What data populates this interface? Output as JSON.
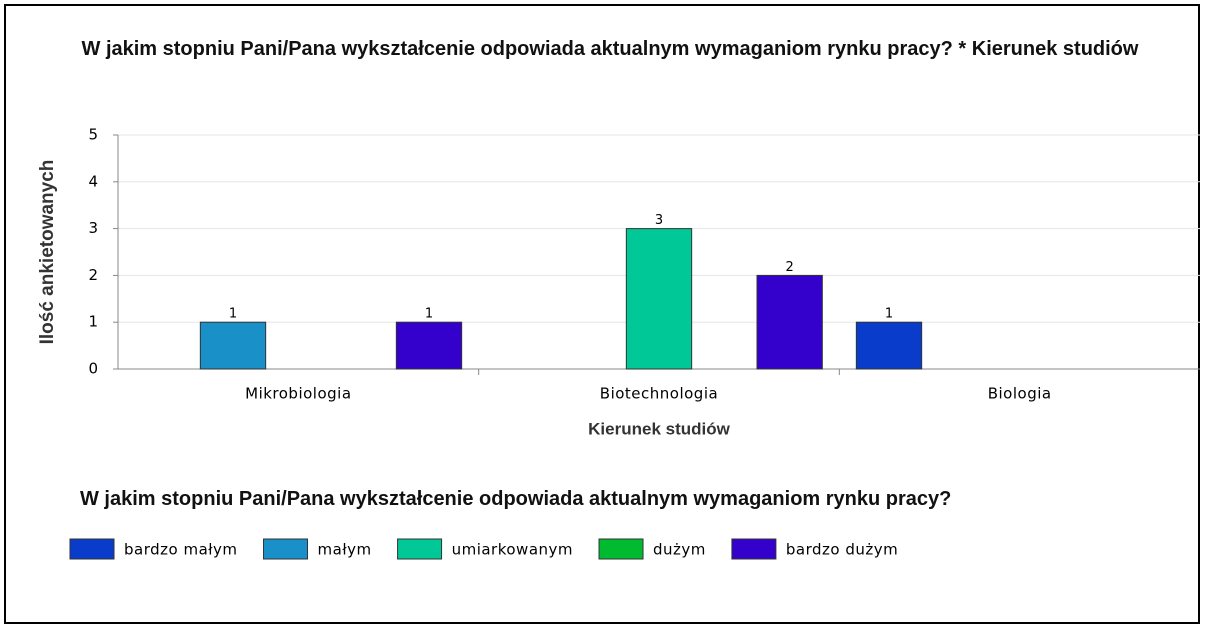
{
  "chart_data": {
    "type": "bar",
    "title": "W jakim stopniu Pani/Pana wykształcenie odpowiada aktualnym wymaganiom rynku pracy? * Kierunek studiów",
    "x_label": "Kierunek studiów",
    "y_label": "Ilość ankietowanych",
    "legend_title": "W jakim stopniu Pani/Pana wykształcenie odpowiada aktualnym wymaganiom rynku pracy?",
    "categories": [
      "Mikrobiologia",
      "Biotechnologia",
      "Biologia"
    ],
    "series": [
      {
        "name": "bardzo małym",
        "color": "#0a3ccc",
        "values": [
          0,
          0,
          1
        ]
      },
      {
        "name": "małym",
        "color": "#1a90c8",
        "values": [
          1,
          0,
          0
        ]
      },
      {
        "name": "umiarkowanym",
        "color": "#00c896",
        "values": [
          0,
          3,
          0
        ]
      },
      {
        "name": "dużym",
        "color": "#00bb30",
        "values": [
          0,
          0,
          0
        ]
      },
      {
        "name": "bardzo dużym",
        "color": "#3300cc",
        "values": [
          1,
          2,
          0
        ]
      }
    ],
    "ylim": [
      0,
      5
    ],
    "yticks": [
      0,
      1,
      2,
      3,
      4,
      5
    ],
    "grid": true
  }
}
